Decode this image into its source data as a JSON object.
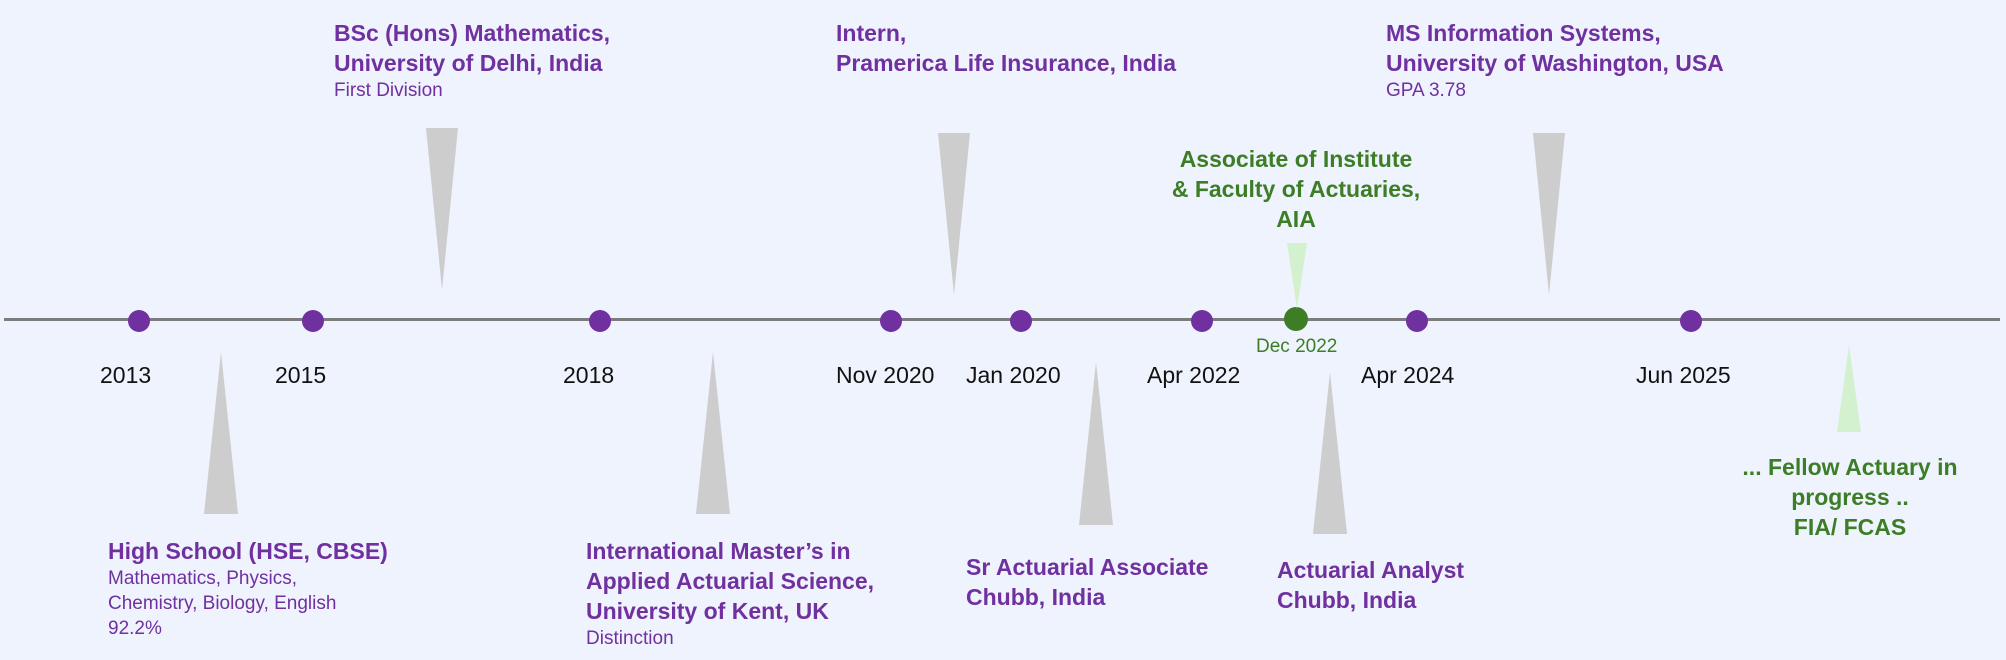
{
  "colors": {
    "background": "#eef3fd",
    "axis": "#7c7c7c",
    "milestone_purple": "#7030a0",
    "milestone_green": "#3d7d26",
    "pointer_gray": "#cdcdcd",
    "pointer_light_green": "#d4f1cf"
  },
  "axis_labels": {
    "y2013": "2013",
    "y2015": "2015",
    "y2018": "2018",
    "nov2020": "Nov 2020",
    "jan2020": "Jan 2020",
    "apr2022": "Apr 2022",
    "dec2022": "Dec 2022",
    "apr2024": "Apr 2024",
    "jun2025": "Jun 2025"
  },
  "events": {
    "high_school": {
      "title": "High School (HSE, CBSE)",
      "detail": "Mathematics, Physics,\nChemistry, Biology, English\n92.2%"
    },
    "bsc": {
      "title": "BSc (Hons) Mathematics,\nUniversity of Delhi, India",
      "detail": "First Division"
    },
    "masters": {
      "title": "International Master’s in\nApplied Actuarial Science,\nUniversity of Kent, UK",
      "detail": "Distinction"
    },
    "intern": {
      "title": "Intern,\nPramerica Life Insurance, India"
    },
    "sr_associate": {
      "title": "Sr Actuarial Associate\nChubb, India"
    },
    "aia": {
      "title": "Associate of Institute\n& Faculty of Actuaries,\nAIA"
    },
    "analyst": {
      "title": "Actuarial Analyst\nChubb, India"
    },
    "ms": {
      "title": "MS Information Systems,\nUniversity of Washington, USA",
      "detail": "GPA 3.78"
    },
    "fellow": {
      "title": "... Fellow Actuary in\nprogress ..\nFIA/ FCAS"
    }
  }
}
